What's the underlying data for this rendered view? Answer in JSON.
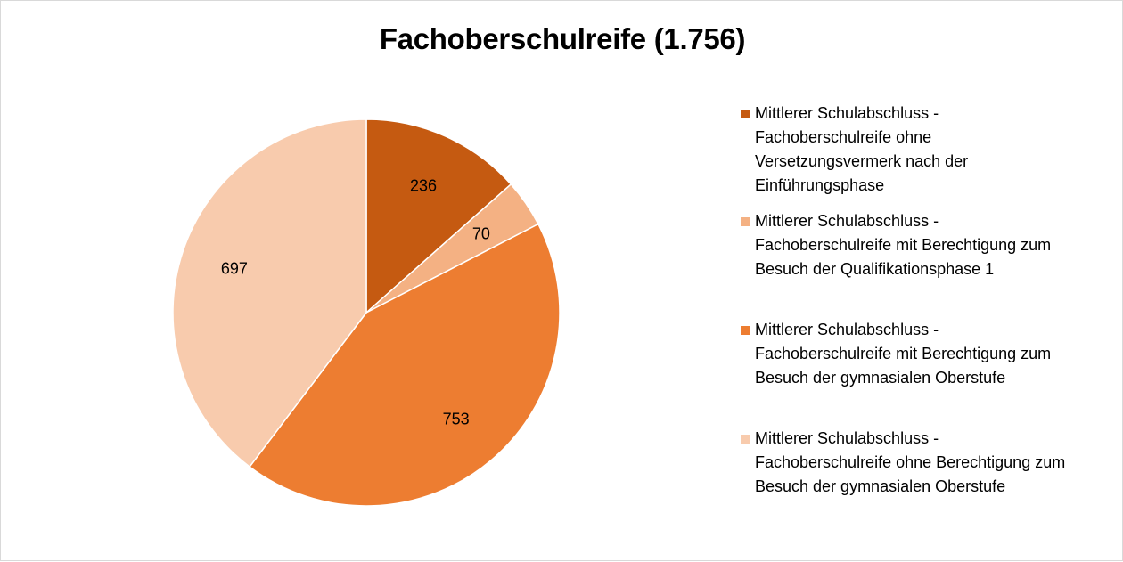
{
  "chart_data": {
    "type": "pie",
    "title": "Fachoberschulreife (1.756)",
    "slices": [
      {
        "label": "Mittlerer Schulabschluss -\nFachoberschulreife ohne\nVersetzungsvermerk nach der\nEinführungsphase",
        "value": 236,
        "color": "#c55a11"
      },
      {
        "label": "Mittlerer Schulabschluss -\nFachoberschulreife mit Berechtigung zum\nBesuch der Qualifikationsphase 1",
        "value": 70,
        "color": "#f4b183"
      },
      {
        "label": "Mittlerer Schulabschluss -\nFachoberschulreife mit Berechtigung zum\nBesuch der gymnasialen Oberstufe",
        "value": 753,
        "color": "#ed7d31"
      },
      {
        "label": "Mittlerer Schulabschluss -\nFachoberschulreife ohne Berechtigung zum\nBesuch der gymnasialen Oberstufe",
        "value": 697,
        "color": "#f8cbad"
      }
    ],
    "legend_position": "right",
    "data_labels": true
  }
}
